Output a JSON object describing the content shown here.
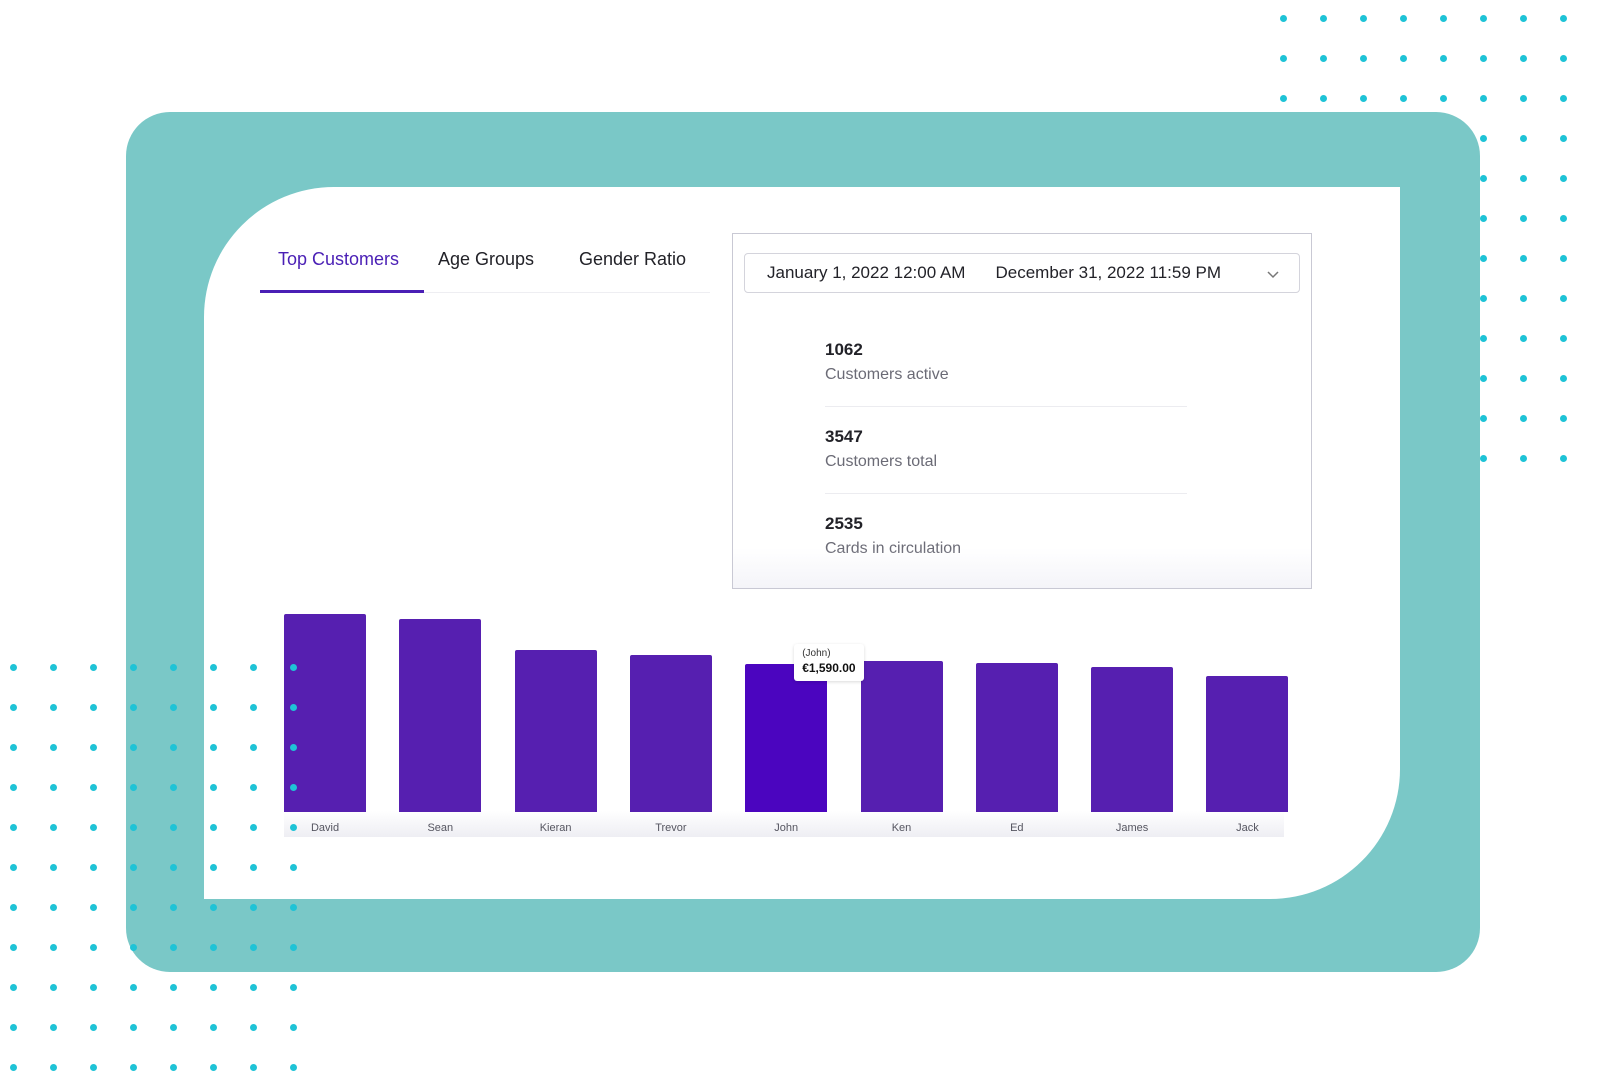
{
  "tabs": [
    {
      "label": "Top Customers",
      "active": true
    },
    {
      "label": "Age Groups",
      "active": false
    },
    {
      "label": "Gender Ratio",
      "active": false
    }
  ],
  "date_range": {
    "start": "January 1, 2022 12:00 AM",
    "end": "December 31, 2022 11:59 PM",
    "icon": "chevron-down-icon"
  },
  "stats": [
    {
      "value": "1062",
      "label": "Customers active"
    },
    {
      "value": "3547",
      "label": "Customers total"
    },
    {
      "value": "2535",
      "label": "Cards in circulation"
    }
  ],
  "tooltip": {
    "name": "(John)",
    "value": "€1,590.00"
  },
  "colors": {
    "accent": "#4a1fb5",
    "bar": "#561fb0",
    "bar_highlight": "#4b05bf",
    "frame": "#7ac8c7",
    "dots": "#1ec3d6"
  },
  "chart_data": {
    "type": "bar",
    "categories": [
      "David",
      "Sean",
      "Kieran",
      "Trevor",
      "John",
      "Ken",
      "Ed",
      "James",
      "Jack"
    ],
    "values": [
      2120,
      2070,
      1740,
      1690,
      1590,
      1620,
      1600,
      1560,
      1460
    ],
    "highlighted": "John",
    "grid": false,
    "ylim": [
      0,
      2200
    ]
  }
}
